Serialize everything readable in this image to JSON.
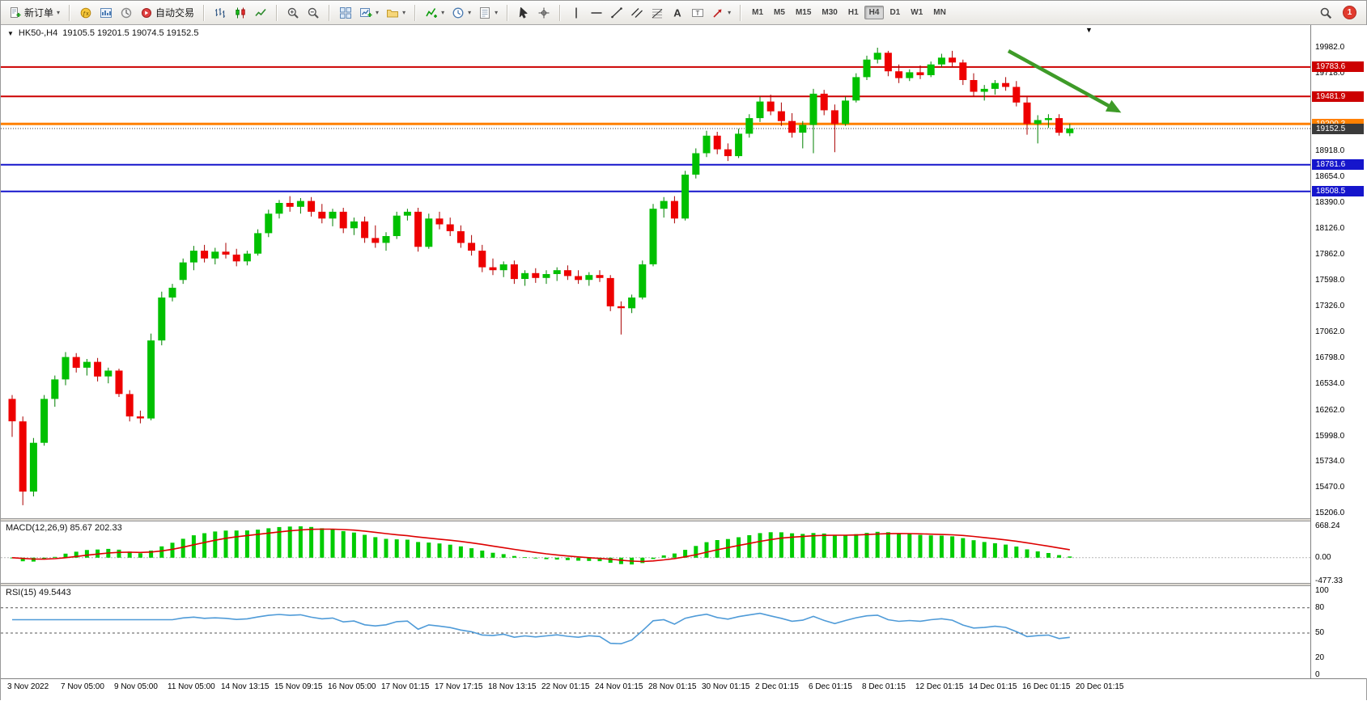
{
  "decorations": {
    "top_marker": "▼"
  },
  "symbol_info": {
    "marker": "▼",
    "name": "HK50-,H4",
    "ohlc": "19105.5 19201.5 19074.5 19152.5"
  },
  "toolbar": {
    "groups": [
      {
        "name": "order",
        "items": [
          {
            "name": "new-order",
            "icon": "new-order-icon",
            "label": "新订单",
            "caret": true
          }
        ]
      },
      {
        "name": "panels",
        "items": [
          {
            "name": "expert-advisors",
            "icon": "expert-advisors-icon"
          },
          {
            "name": "charts",
            "icon": "charts-icon"
          },
          {
            "name": "data-window",
            "icon": "data-window-icon"
          },
          {
            "name": "autotrading",
            "icon": "autotrading-icon",
            "label": "自动交易"
          }
        ]
      },
      {
        "name": "chart-types",
        "items": [
          {
            "name": "bar-chart",
            "icon": "bar-chart-icon"
          },
          {
            "name": "candlestick-chart",
            "icon": "candlestick-icon"
          },
          {
            "name": "line-chart",
            "icon": "line-chart-icon"
          }
        ]
      },
      {
        "name": "zoom",
        "items": [
          {
            "name": "zoom-in",
            "icon": "zoom-in-icon"
          },
          {
            "name": "zoom-out",
            "icon": "zoom-out-icon"
          }
        ]
      },
      {
        "name": "windows",
        "items": [
          {
            "name": "tile-windows",
            "icon": "tile-windows-icon"
          },
          {
            "name": "new-chart",
            "icon": "new-chart-icon",
            "caret": true
          },
          {
            "name": "profiles",
            "icon": "profiles-icon",
            "caret": true
          }
        ]
      },
      {
        "name": "tools",
        "items": [
          {
            "name": "indicators",
            "icon": "indicators-icon",
            "caret": true
          },
          {
            "name": "periods",
            "icon": "period-icon",
            "caret": true
          },
          {
            "name": "templates",
            "icon": "templates-icon",
            "caret": true
          }
        ]
      },
      {
        "name": "pointer",
        "items": [
          {
            "name": "cursor",
            "icon": "cursor-icon"
          },
          {
            "name": "crosshair",
            "icon": "crosshair-icon"
          }
        ]
      },
      {
        "name": "objects",
        "items": [
          {
            "name": "vertical-line",
            "icon": "vertical-line-icon"
          },
          {
            "name": "horizontal-line",
            "icon": "horizontal-line-icon"
          },
          {
            "name": "trendline",
            "icon": "trendline-icon"
          },
          {
            "name": "equidistant-channel",
            "icon": "channel-icon"
          },
          {
            "name": "fibonacci",
            "icon": "fibonacci-icon"
          },
          {
            "name": "text",
            "icon": "text-icon"
          },
          {
            "name": "label",
            "icon": "label-icon"
          },
          {
            "name": "arrows",
            "icon": "arrows-icon",
            "caret": true
          }
        ]
      },
      {
        "name": "timeframes",
        "items": [
          {
            "name": "tf-m1",
            "label": "M1"
          },
          {
            "name": "tf-m5",
            "label": "M5"
          },
          {
            "name": "tf-m15",
            "label": "M15"
          },
          {
            "name": "tf-m30",
            "label": "M30"
          },
          {
            "name": "tf-h1",
            "label": "H1"
          },
          {
            "name": "tf-h4",
            "label": "H4",
            "active": true
          },
          {
            "name": "tf-d1",
            "label": "D1"
          },
          {
            "name": "tf-w1",
            "label": "W1"
          },
          {
            "name": "tf-mn",
            "label": "MN"
          }
        ]
      }
    ],
    "right": {
      "search_icon": "search-icon",
      "notification_count": "1"
    }
  },
  "chart_data": {
    "type": "candlestick",
    "symbol": "HK50-",
    "timeframe": "H4",
    "current_bar": {
      "open": 19105.5,
      "high": 19201.5,
      "low": 19074.5,
      "close": 19152.5
    },
    "y_axis_labels": [
      19982,
      19718,
      19454,
      19190,
      18918,
      18654,
      18390,
      18126,
      17862,
      17598,
      17326,
      17062,
      16798,
      16534,
      16262,
      15998,
      15734,
      15470,
      15206
    ],
    "time_axis_labels": [
      "3 Nov 2022",
      "7 Nov 05:00",
      "9 Nov 05:00",
      "11 Nov 05:00",
      "14 Nov 13:15",
      "15 Nov 09:15",
      "16 Nov 05:00",
      "17 Nov 01:15",
      "17 Nov 17:15",
      "18 Nov 13:15",
      "22 Nov 01:15",
      "24 Nov 01:15",
      "28 Nov 01:15",
      "30 Nov 01:15",
      "2 Dec 01:15",
      "6 Dec 01:15",
      "8 Dec 01:15",
      "12 Dec 01:15",
      "14 Dec 01:15",
      "16 Dec 01:15",
      "20 Dec 01:15"
    ],
    "candles": [
      [
        16380,
        16420,
        15990,
        16150
      ],
      [
        16150,
        16200,
        15290,
        15430
      ],
      [
        15430,
        15980,
        15380,
        15930
      ],
      [
        15930,
        16420,
        15900,
        16380
      ],
      [
        16380,
        16620,
        16300,
        16580
      ],
      [
        16580,
        16860,
        16520,
        16810
      ],
      [
        16810,
        16850,
        16650,
        16700
      ],
      [
        16700,
        16790,
        16620,
        16760
      ],
      [
        16760,
        16800,
        16560,
        16610
      ],
      [
        16610,
        16700,
        16540,
        16670
      ],
      [
        16670,
        16690,
        16400,
        16430
      ],
      [
        16430,
        16470,
        16150,
        16200
      ],
      [
        16200,
        16260,
        16130,
        16180
      ],
      [
        16180,
        17050,
        16160,
        16980
      ],
      [
        16980,
        17480,
        16930,
        17420
      ],
      [
        17420,
        17560,
        17380,
        17520
      ],
      [
        17600,
        17820,
        17560,
        17780
      ],
      [
        17780,
        17950,
        17700,
        17900
      ],
      [
        17900,
        17960,
        17780,
        17820
      ],
      [
        17820,
        17930,
        17760,
        17890
      ],
      [
        17890,
        17980,
        17820,
        17860
      ],
      [
        17860,
        17920,
        17740,
        17790
      ],
      [
        17790,
        17900,
        17750,
        17870
      ],
      [
        17870,
        18120,
        17850,
        18080
      ],
      [
        18080,
        18320,
        18040,
        18280
      ],
      [
        18280,
        18420,
        18230,
        18390
      ],
      [
        18390,
        18460,
        18300,
        18350
      ],
      [
        18350,
        18440,
        18280,
        18410
      ],
      [
        18410,
        18450,
        18250,
        18300
      ],
      [
        18300,
        18380,
        18180,
        18230
      ],
      [
        18230,
        18330,
        18150,
        18300
      ],
      [
        18300,
        18340,
        18080,
        18130
      ],
      [
        18130,
        18240,
        18060,
        18200
      ],
      [
        18200,
        18250,
        17980,
        18030
      ],
      [
        18030,
        18160,
        17930,
        17980
      ],
      [
        17980,
        18090,
        17900,
        18050
      ],
      [
        18050,
        18300,
        18020,
        18260
      ],
      [
        18260,
        18330,
        18210,
        18300
      ],
      [
        18300,
        18340,
        17890,
        17940
      ],
      [
        17940,
        18280,
        17920,
        18230
      ],
      [
        18230,
        18300,
        18120,
        18170
      ],
      [
        18170,
        18240,
        18050,
        18100
      ],
      [
        18100,
        18160,
        17930,
        17980
      ],
      [
        17980,
        18060,
        17850,
        17900
      ],
      [
        17900,
        17960,
        17680,
        17730
      ],
      [
        17730,
        17820,
        17650,
        17700
      ],
      [
        17700,
        17790,
        17630,
        17760
      ],
      [
        17760,
        17800,
        17560,
        17610
      ],
      [
        17610,
        17700,
        17540,
        17670
      ],
      [
        17670,
        17720,
        17570,
        17620
      ],
      [
        17620,
        17700,
        17560,
        17660
      ],
      [
        17660,
        17730,
        17590,
        17700
      ],
      [
        17700,
        17750,
        17600,
        17640
      ],
      [
        17640,
        17700,
        17560,
        17600
      ],
      [
        17600,
        17680,
        17540,
        17650
      ],
      [
        17650,
        17700,
        17580,
        17620
      ],
      [
        17620,
        17650,
        17280,
        17330
      ],
      [
        17330,
        17380,
        17040,
        17310
      ],
      [
        17310,
        17450,
        17260,
        17420
      ],
      [
        17420,
        17800,
        17400,
        17760
      ],
      [
        17760,
        18380,
        17740,
        18330
      ],
      [
        18330,
        18450,
        18240,
        18410
      ],
      [
        18410,
        18460,
        18180,
        18230
      ],
      [
        18230,
        18720,
        18210,
        18680
      ],
      [
        18680,
        18950,
        18640,
        18900
      ],
      [
        18900,
        19130,
        18860,
        19080
      ],
      [
        19080,
        19120,
        18890,
        18940
      ],
      [
        18940,
        19000,
        18820,
        18870
      ],
      [
        18870,
        19150,
        18850,
        19100
      ],
      [
        19100,
        19300,
        19060,
        19260
      ],
      [
        19260,
        19480,
        19220,
        19430
      ],
      [
        19430,
        19500,
        19290,
        19330
      ],
      [
        19330,
        19420,
        19180,
        19230
      ],
      [
        19230,
        19310,
        19060,
        19110
      ],
      [
        19110,
        19230,
        18950,
        19190
      ],
      [
        19190,
        19560,
        18900,
        19510
      ],
      [
        19510,
        19550,
        19290,
        19340
      ],
      [
        19340,
        19400,
        18910,
        19200
      ],
      [
        19200,
        19480,
        19180,
        19440
      ],
      [
        19440,
        19720,
        19420,
        19680
      ],
      [
        19680,
        19900,
        19650,
        19860
      ],
      [
        19860,
        19982,
        19820,
        19930
      ],
      [
        19930,
        19950,
        19690,
        19740
      ],
      [
        19740,
        19810,
        19620,
        19670
      ],
      [
        19670,
        19760,
        19640,
        19730
      ],
      [
        19730,
        19800,
        19660,
        19700
      ],
      [
        19700,
        19840,
        19680,
        19810
      ],
      [
        19810,
        19920,
        19780,
        19880
      ],
      [
        19880,
        19950,
        19790,
        19830
      ],
      [
        19830,
        19860,
        19600,
        19650
      ],
      [
        19650,
        19720,
        19480,
        19530
      ],
      [
        19530,
        19600,
        19440,
        19560
      ],
      [
        19560,
        19650,
        19500,
        19620
      ],
      [
        19620,
        19680,
        19540,
        19580
      ],
      [
        19580,
        19640,
        19380,
        19420
      ],
      [
        19420,
        19480,
        19090,
        19200
      ],
      [
        19200,
        19290,
        19000,
        19240
      ],
      [
        19240,
        19300,
        19160,
        19260
      ],
      [
        19260,
        19300,
        19080,
        19110
      ],
      [
        19105.5,
        19201.5,
        19074.5,
        19152.5
      ]
    ],
    "hlines": [
      {
        "price": 19783.6,
        "label": "19783.6",
        "color": "#cc0000",
        "width": 2,
        "style": "solid"
      },
      {
        "price": 19481.9,
        "label": "19481.9",
        "color": "#cc0000",
        "width": 2,
        "style": "solid"
      },
      {
        "price": 19200.3,
        "label": "19200.3",
        "color": "#ff8000",
        "width": 3,
        "style": "solid"
      },
      {
        "price": 19152.5,
        "label": "19152.5",
        "color": "#3a3a3a",
        "width": 1,
        "style": "dotted",
        "role": "current-price"
      },
      {
        "price": 18781.6,
        "label": "18781.6",
        "color": "#1515cc",
        "width": 2,
        "style": "solid"
      },
      {
        "price": 18508.5,
        "label": "18508.5",
        "color": "#1515cc",
        "width": 2,
        "style": "solid"
      }
    ],
    "annotations": [
      {
        "type": "arrow",
        "from": [
          1245,
          32
        ],
        "to": [
          1380,
          106
        ],
        "color": "#3e9b28"
      }
    ],
    "indicators": {
      "macd": {
        "label": "MACD(12,26,9) 85.67 202.33",
        "params": [
          12,
          26,
          9
        ],
        "values_text": [
          "85.67",
          "202.33"
        ],
        "axis_labels": [
          "668.24",
          "0.00",
          "-477.33"
        ],
        "histogram_color": "#00cc00",
        "signal_color": "#dd0000"
      },
      "rsi": {
        "label": "RSI(15) 49.5443",
        "period": 15,
        "value_text": "49.5443",
        "axis_labels": [
          "100",
          "80",
          "50",
          "20",
          "0"
        ],
        "levels": [
          80,
          50
        ],
        "line_color": "#4f9bd8"
      }
    },
    "colors": {
      "bull": "#00c000",
      "bull_wick": "#008000",
      "bear": "#ee0000",
      "bear_wick": "#aa0000",
      "background": "#ffffff",
      "axis_text": "#000000"
    }
  }
}
